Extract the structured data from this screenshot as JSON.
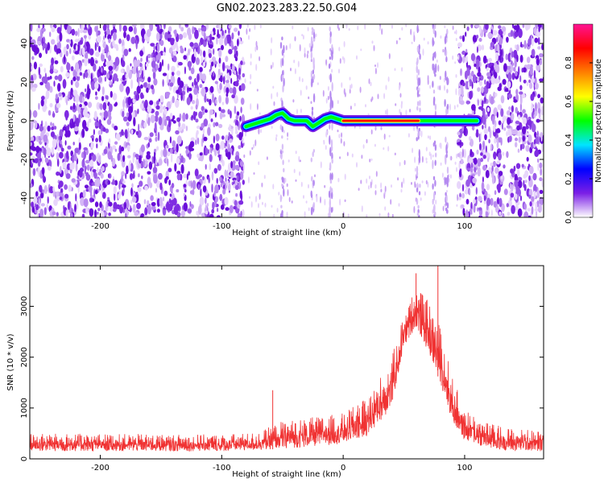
{
  "title": "GN02.2023.283.22.50.G04",
  "chart_data": [
    {
      "type": "heatmap",
      "xlabel": "Height of straight line (km)",
      "ylabel": "Frequency (Hz)",
      "xlim": [
        -258,
        165
      ],
      "ylim": [
        -50,
        50
      ],
      "xticks": [
        -200,
        -100,
        0,
        100
      ],
      "yticks": [
        -40,
        -20,
        0,
        20,
        40
      ],
      "colorbar": {
        "label": "Normalized spectral amplitude",
        "range": [
          0,
          1
        ],
        "ticks": [
          0.0,
          0.2,
          0.4,
          0.6,
          0.8
        ],
        "tick_labels": [
          "0.0",
          "0.2",
          "0.4",
          "0.6",
          "0.8"
        ],
        "colormap": [
          "#ffffff",
          "#7b1fe6",
          "#0000ff",
          "#00e5ff",
          "#00ff00",
          "#ffff00",
          "#ff8000",
          "#ff0000",
          "#ff1493"
        ]
      },
      "signal_track": [
        {
          "x": -80,
          "y": -3
        },
        {
          "x": -75,
          "y": -2
        },
        {
          "x": -70,
          "y": -1
        },
        {
          "x": -65,
          "y": 0
        },
        {
          "x": -60,
          "y": 1
        },
        {
          "x": -55,
          "y": 3
        },
        {
          "x": -50,
          "y": 4
        },
        {
          "x": -45,
          "y": 1
        },
        {
          "x": -40,
          "y": 0
        },
        {
          "x": -35,
          "y": 0
        },
        {
          "x": -30,
          "y": 0
        },
        {
          "x": -25,
          "y": -3
        },
        {
          "x": -20,
          "y": -1
        },
        {
          "x": -15,
          "y": 1
        },
        {
          "x": -10,
          "y": 2
        },
        {
          "x": -5,
          "y": 1
        },
        {
          "x": 0,
          "y": 0
        },
        {
          "x": 110,
          "y": 0
        }
      ],
      "strong_segment": {
        "x_start": 0,
        "x_end": 62,
        "y": 0
      },
      "noise_regions": [
        [
          -258,
          -82
        ],
        [
          95,
          165
        ]
      ]
    },
    {
      "type": "line",
      "xlabel": "Height of straight line (km)",
      "ylabel": "SNR (10 * v/v)",
      "xlim": [
        -258,
        165
      ],
      "ylim": [
        0,
        3800
      ],
      "xticks": [
        -200,
        -100,
        0,
        100
      ],
      "yticks": [
        0,
        1000,
        2000,
        3000
      ],
      "color": "#f03232",
      "envelope": [
        {
          "x": -258,
          "lo": 150,
          "hi": 500
        },
        {
          "x": -100,
          "lo": 150,
          "hi": 480
        },
        {
          "x": -70,
          "lo": 170,
          "hi": 520
        },
        {
          "x": -50,
          "lo": 200,
          "hi": 750
        },
        {
          "x": -30,
          "lo": 230,
          "hi": 800
        },
        {
          "x": 0,
          "lo": 300,
          "hi": 900
        },
        {
          "x": 20,
          "lo": 450,
          "hi": 1200
        },
        {
          "x": 40,
          "lo": 1000,
          "hi": 2000
        },
        {
          "x": 50,
          "lo": 2200,
          "hi": 2900
        },
        {
          "x": 60,
          "lo": 2600,
          "hi": 3400
        },
        {
          "x": 70,
          "lo": 2100,
          "hi": 3100
        },
        {
          "x": 80,
          "lo": 1500,
          "hi": 2600
        },
        {
          "x": 90,
          "lo": 700,
          "hi": 1600
        },
        {
          "x": 100,
          "lo": 350,
          "hi": 1000
        },
        {
          "x": 120,
          "lo": 200,
          "hi": 700
        },
        {
          "x": 140,
          "lo": 150,
          "hi": 600
        },
        {
          "x": 165,
          "lo": 150,
          "hi": 550
        }
      ],
      "spikes": [
        {
          "x": -58,
          "y": 1350
        },
        {
          "x": 60,
          "y": 3650
        },
        {
          "x": 78,
          "y": 3800
        }
      ]
    }
  ]
}
